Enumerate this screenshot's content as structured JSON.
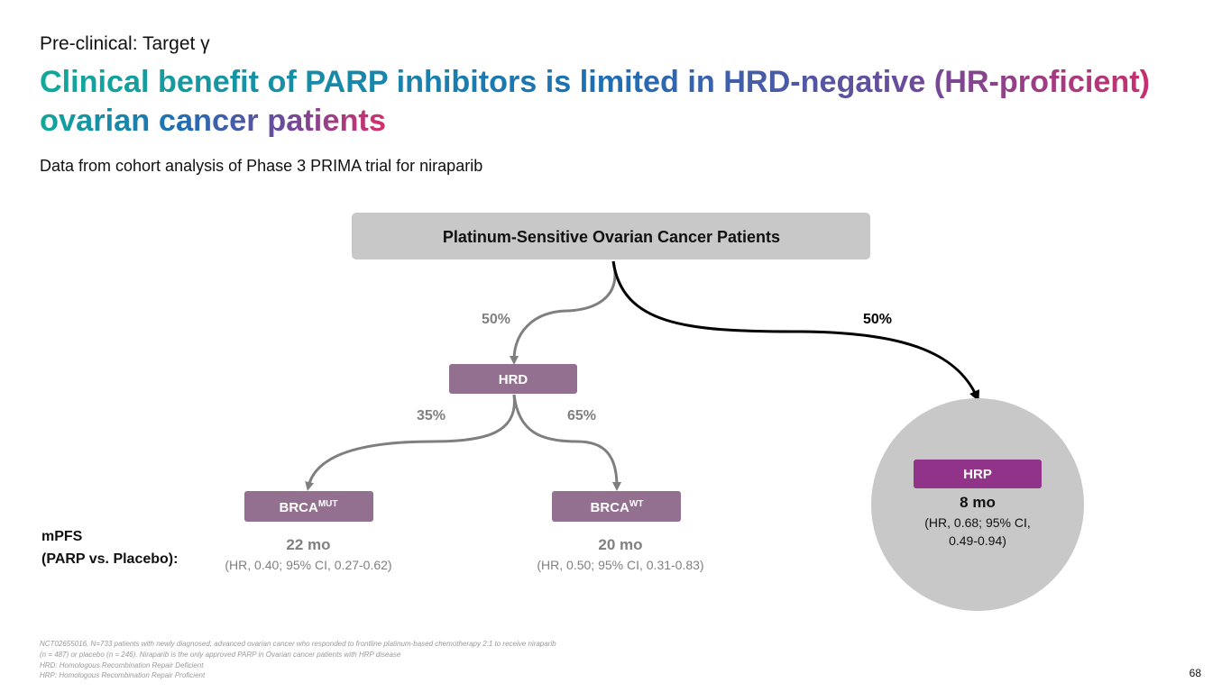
{
  "header": {
    "kicker": "Pre-clinical: Target γ",
    "title": {
      "lines": [
        "Clinical benefit of PARP inhibitors is limited in HRD-negative (HR-proficient)",
        "ovarian cancer patients"
      ]
    },
    "subtitle": "Data from cohort analysis of Phase 3 PRIMA trial for niraparib"
  },
  "nodes": {
    "root": {
      "label": "Platinum-Sensitive Ovarian Cancer Patients"
    },
    "hrd": {
      "label": "HRD",
      "share": "50%"
    },
    "hrp": {
      "label": "HRP",
      "share": "50%",
      "mpfs": "8 mo",
      "detail": [
        "(HR, 0.68; 95% CI,",
        "0.49-0.94)"
      ]
    },
    "brca_mut": {
      "label": {
        "base": "BRCA",
        "sup": "MUT"
      },
      "share": "35%",
      "mpfs": "22 mo",
      "detail": "(HR, 0.40; 95% CI, 0.27-0.62)"
    },
    "brca_wt": {
      "label": {
        "base": "BRCA",
        "sup": "WT"
      },
      "share": "65%",
      "mpfs": "20 mo",
      "detail": "(HR, 0.50; 95% CI, 0.31-0.83)"
    }
  },
  "mpfs_label": [
    "mPFS",
    "(PARP vs. Placebo):"
  ],
  "footnotes": [
    "NCT02655016, N=733 patients with newly diagnosed, advanced ovarian cancer who responded to frontline platinum-based chemotherapy 2:1 to receive niraparib",
    "(n = 487) or placebo (n = 246). Niraparib is the only approved PARP in Ovarian cancer patients with HRP disease",
    "HRD: Homologous Recombination Repair Deficient",
    "HRP: Homologous Recombination Repair Proficient"
  ],
  "page_number": "68"
}
